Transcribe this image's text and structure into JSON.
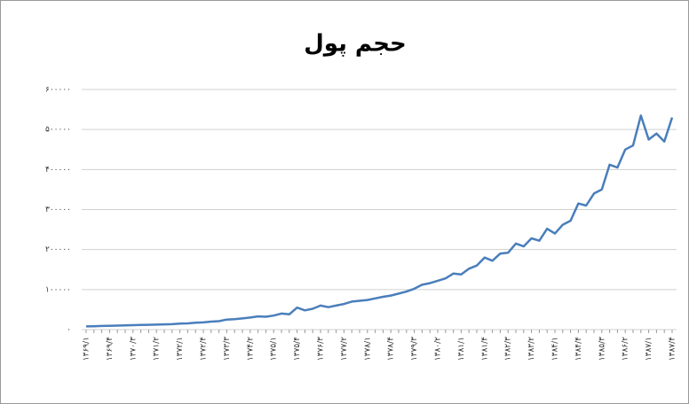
{
  "chart_data": {
    "type": "line",
    "title": "حجم پول",
    "categories": [
      "۱۳۶۹/۱",
      null,
      null,
      "۱۳۶۹/۴",
      null,
      null,
      "۱۳۷۰/۳",
      null,
      null,
      "۱۳۷۱/۲",
      null,
      null,
      "۱۳۷۲/۱",
      null,
      null,
      "۱۳۷۲/۴",
      null,
      null,
      "۱۳۷۳/۳",
      null,
      null,
      "۱۳۷۴/۲",
      null,
      null,
      "۱۳۷۵/۱",
      null,
      null,
      "۱۳۷۵/۴",
      null,
      null,
      "۱۳۷۶/۳",
      null,
      null,
      "۱۳۷۷/۲",
      null,
      null,
      "۱۳۷۸/۱",
      null,
      null,
      "۱۳۷۸/۴",
      null,
      null,
      "۱۳۷۹/۳",
      null,
      null,
      "۱۳۸۰/۲",
      null,
      null,
      "۱۳۸۱/۱",
      null,
      null,
      "۱۳۸۱/۴",
      null,
      null,
      "۱۳۸۲/۳",
      null,
      null,
      "۱۳۸۳/۲",
      null,
      null,
      "۱۳۸۴/۱",
      null,
      null,
      "۱۳۸۴/۴",
      null,
      null,
      "۱۳۸۵/۳",
      null,
      null,
      "۱۳۸۶/۲",
      null,
      null,
      "۱۳۸۷/۱",
      null,
      null,
      "۱۳۸۷/۴"
    ],
    "series": [
      {
        "color": "#4a7ebb",
        "values": [
          8000,
          8500,
          9000,
          9500,
          10000,
          10500,
          11000,
          11500,
          12000,
          12500,
          13000,
          13500,
          15000,
          15500,
          17000,
          18000,
          20000,
          21000,
          25000,
          26000,
          28000,
          30000,
          33000,
          32000,
          35000,
          40000,
          38000,
          55000,
          48000,
          52000,
          60000,
          56000,
          60000,
          64000,
          70000,
          72000,
          74000,
          78000,
          82000,
          85000,
          90000,
          95000,
          102000,
          112000,
          116000,
          122000,
          128000,
          140000,
          138000,
          152000,
          160000,
          180000,
          172000,
          190000,
          192000,
          215000,
          208000,
          228000,
          222000,
          252000,
          240000,
          262000,
          272000,
          315000,
          310000,
          340000,
          350000,
          412000,
          405000,
          450000,
          460000,
          535000,
          475000,
          490000,
          470000,
          530000
        ]
      }
    ],
    "ylim": [
      0,
      600000
    ],
    "yticks": [
      {
        "value": 0,
        "label": "۰"
      },
      {
        "value": 100000,
        "label": "۱۰۰۰۰۰"
      },
      {
        "value": 200000,
        "label": "۲۰۰۰۰۰"
      },
      {
        "value": 300000,
        "label": "۳۰۰۰۰۰"
      },
      {
        "value": 400000,
        "label": "۴۰۰۰۰۰"
      },
      {
        "value": 500000,
        "label": "۵۰۰۰۰۰"
      },
      {
        "value": 600000,
        "label": "۶۰۰۰۰۰"
      }
    ],
    "grid": true
  }
}
